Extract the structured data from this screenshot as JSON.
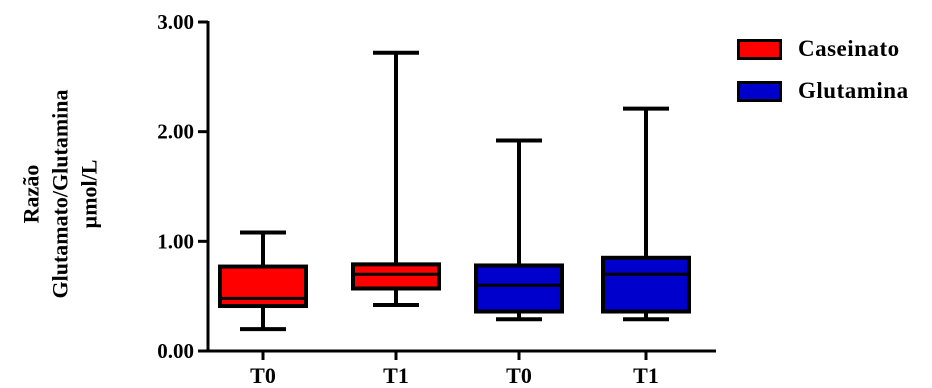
{
  "chart_data": {
    "type": "boxplot",
    "title": "",
    "ylabel_lines": [
      "Razão",
      "Glutamato/Glutamina",
      "µmol/L"
    ],
    "ylim": [
      0,
      3
    ],
    "yticks": [
      0,
      1,
      2,
      3
    ],
    "ytick_labels": [
      "0.00",
      "1.00",
      "2.00",
      "3.00"
    ],
    "categories": [
      "T0",
      "T1",
      "T0",
      "T1"
    ],
    "series": [
      {
        "name": "Caseinato",
        "color": "#ff0000",
        "boxes": [
          {
            "category": "T0",
            "min": 0.2,
            "q1": 0.41,
            "median": 0.48,
            "q3": 0.77,
            "max": 1.08
          },
          {
            "category": "T1",
            "min": 0.42,
            "q1": 0.57,
            "median": 0.7,
            "q3": 0.79,
            "max": 2.72
          }
        ]
      },
      {
        "name": "Glutamina",
        "color": "#0000cc",
        "boxes": [
          {
            "category": "T0",
            "min": 0.29,
            "q1": 0.36,
            "median": 0.6,
            "q3": 0.78,
            "max": 1.92
          },
          {
            "category": "T1",
            "min": 0.29,
            "q1": 0.36,
            "median": 0.7,
            "q3": 0.85,
            "max": 2.21
          }
        ]
      }
    ],
    "legend_position": "top-right",
    "grid": false
  }
}
